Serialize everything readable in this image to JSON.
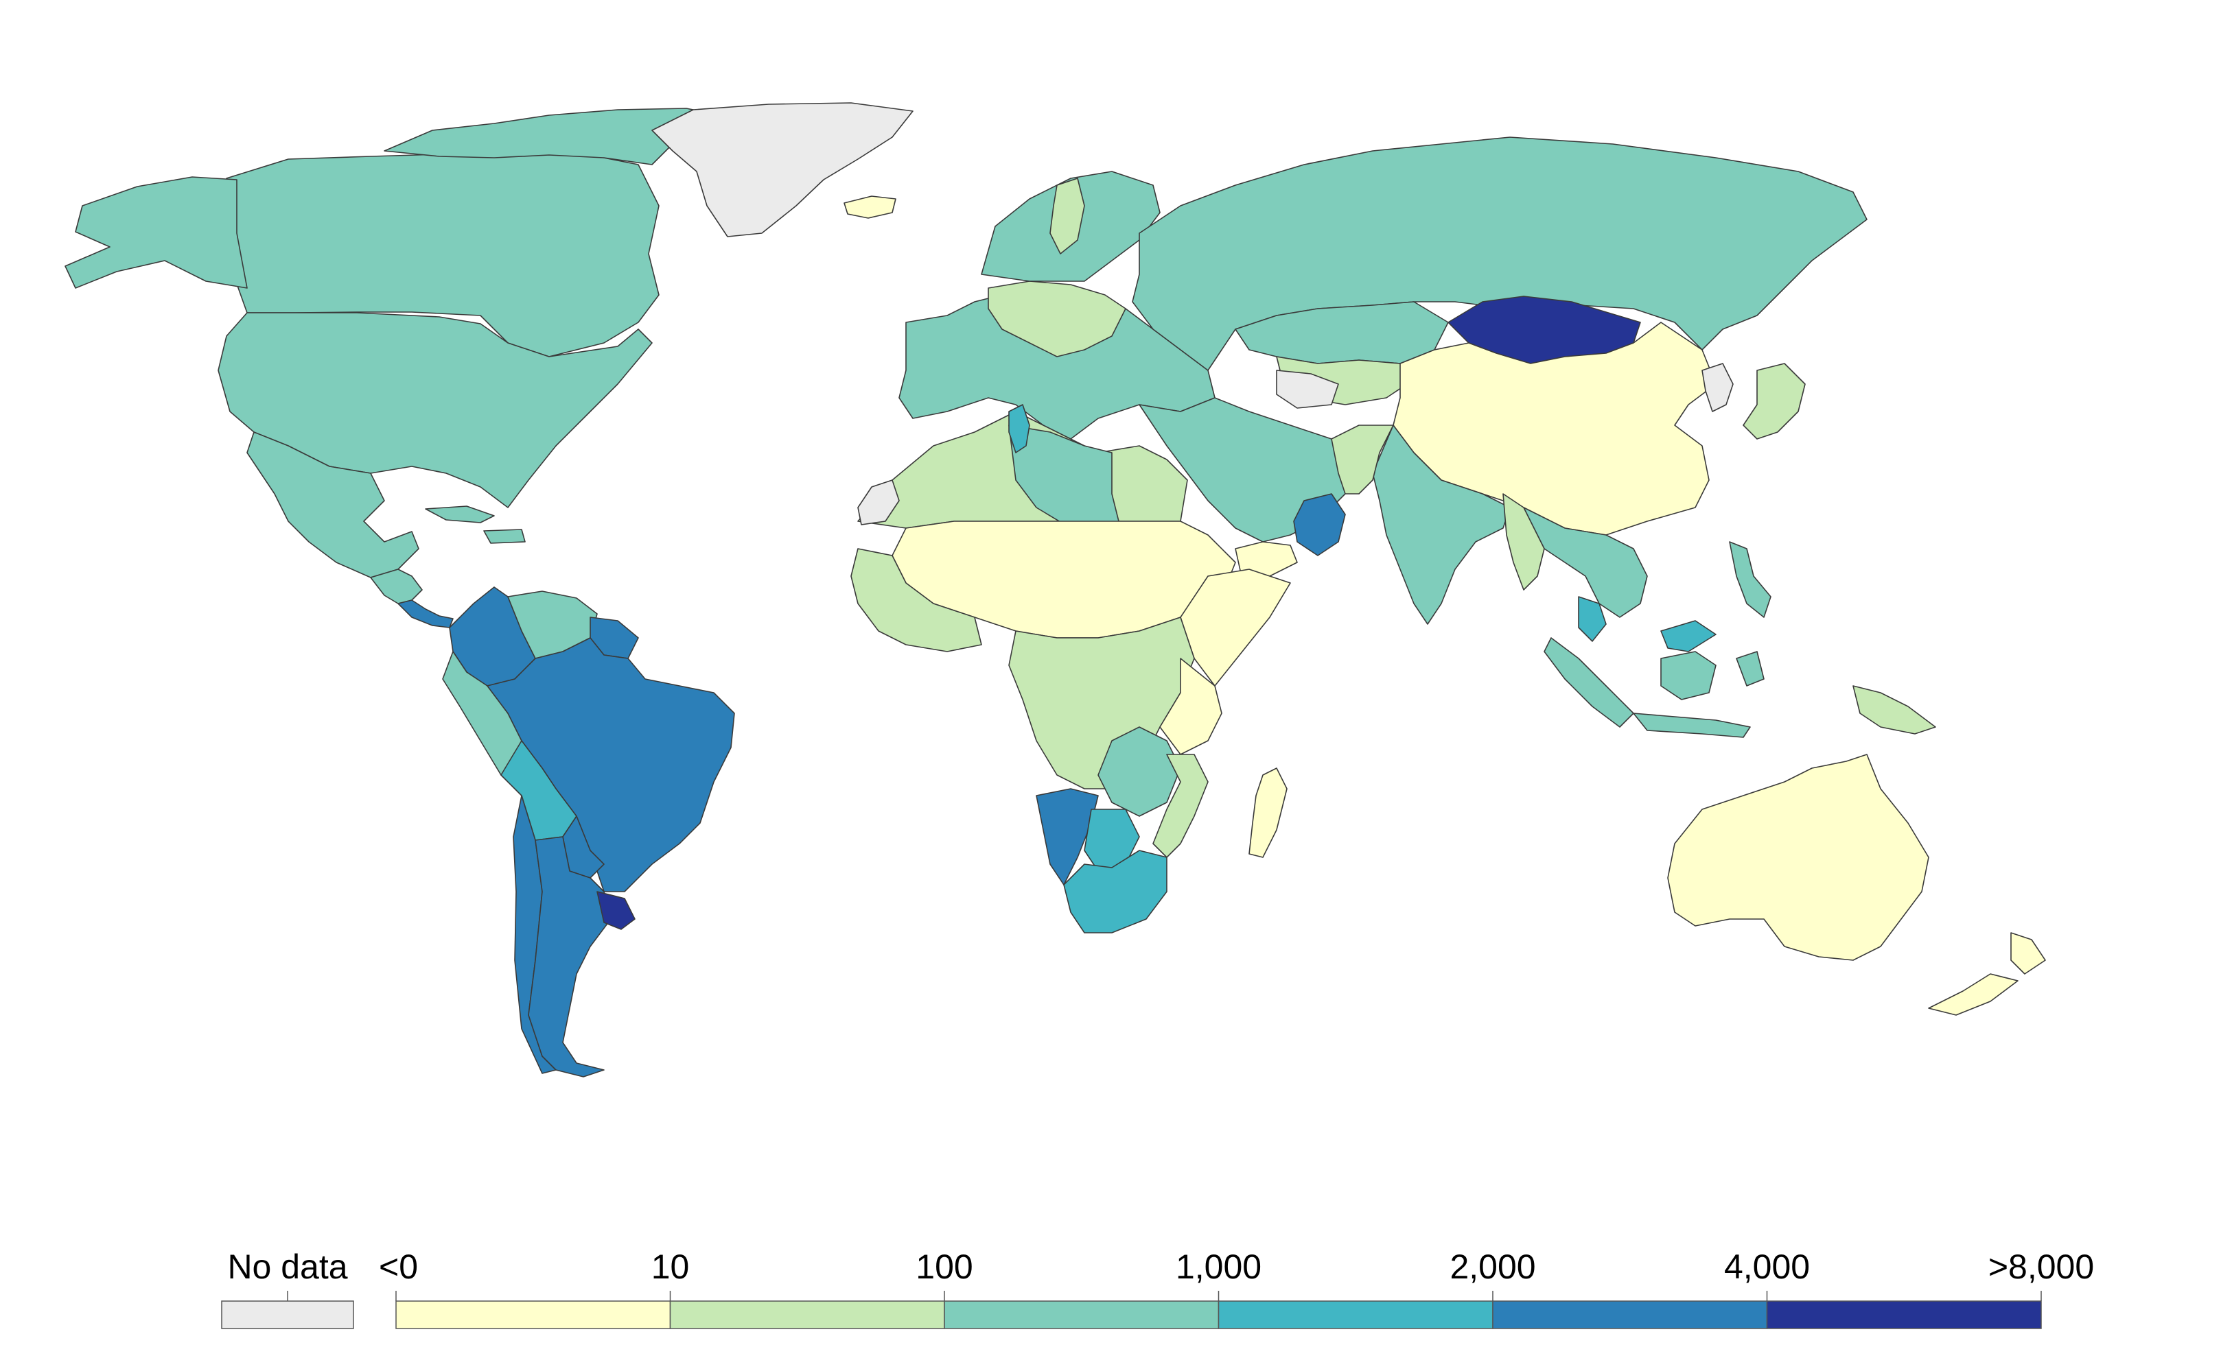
{
  "map": {
    "colors": {
      "no_data": "#ebebeb",
      "bin_lt10": "#ffffcc",
      "bin_10_100": "#c7e9b4",
      "bin_100_1000": "#7fcdbb",
      "bin_1000_2000": "#41b6c4",
      "bin_2000_4000": "#2c7fb8",
      "bin_4000_8000": "#253494",
      "ocean": "#ffffff",
      "border": "#3a3a3a"
    },
    "regions": [
      {
        "name": "canada",
        "fill": "bin_100_1000"
      },
      {
        "name": "alaska",
        "fill": "bin_100_1000"
      },
      {
        "name": "arctic-islands",
        "fill": "bin_100_1000"
      },
      {
        "name": "greenland",
        "fill": "no_data"
      },
      {
        "name": "iceland",
        "fill": "bin_lt10"
      },
      {
        "name": "united-states",
        "fill": "bin_100_1000"
      },
      {
        "name": "mexico",
        "fill": "bin_100_1000"
      },
      {
        "name": "central-america",
        "fill": "bin_100_1000"
      },
      {
        "name": "costa-rica-panama",
        "fill": "bin_2000_4000"
      },
      {
        "name": "caribbean",
        "fill": "bin_100_1000"
      },
      {
        "name": "colombia",
        "fill": "bin_2000_4000"
      },
      {
        "name": "venezuela",
        "fill": "bin_100_1000"
      },
      {
        "name": "guyana-suriname",
        "fill": "bin_2000_4000"
      },
      {
        "name": "ecuador-peru",
        "fill": "bin_100_1000"
      },
      {
        "name": "brazil",
        "fill": "bin_2000_4000"
      },
      {
        "name": "bolivia",
        "fill": "bin_1000_2000"
      },
      {
        "name": "paraguay",
        "fill": "bin_2000_4000"
      },
      {
        "name": "chile",
        "fill": "bin_2000_4000"
      },
      {
        "name": "argentina",
        "fill": "bin_2000_4000"
      },
      {
        "name": "uruguay",
        "fill": "bin_4000_8000"
      },
      {
        "name": "europe",
        "fill": "bin_100_1000"
      },
      {
        "name": "central-europe",
        "fill": "bin_10_100"
      },
      {
        "name": "scandinavia",
        "fill": "bin_100_1000"
      },
      {
        "name": "sweden",
        "fill": "bin_10_100"
      },
      {
        "name": "russia",
        "fill": "bin_100_1000"
      },
      {
        "name": "kazakhstan",
        "fill": "bin_100_1000"
      },
      {
        "name": "central-asia",
        "fill": "bin_10_100"
      },
      {
        "name": "turkmenistan",
        "fill": "no_data"
      },
      {
        "name": "mongolia",
        "fill": "bin_4000_8000"
      },
      {
        "name": "china",
        "fill": "bin_lt10"
      },
      {
        "name": "korea",
        "fill": "no_data"
      },
      {
        "name": "japan",
        "fill": "bin_10_100"
      },
      {
        "name": "middle-east",
        "fill": "bin_100_1000"
      },
      {
        "name": "oman",
        "fill": "bin_2000_4000"
      },
      {
        "name": "yemen",
        "fill": "bin_lt10"
      },
      {
        "name": "south-asia",
        "fill": "bin_100_1000"
      },
      {
        "name": "pakistan",
        "fill": "bin_10_100"
      },
      {
        "name": "southeast-asia",
        "fill": "bin_100_1000"
      },
      {
        "name": "myanmar",
        "fill": "bin_10_100"
      },
      {
        "name": "malaysia",
        "fill": "bin_1000_2000"
      },
      {
        "name": "indonesia",
        "fill": "bin_100_1000"
      },
      {
        "name": "papua-new-guinea",
        "fill": "bin_10_100"
      },
      {
        "name": "philippines",
        "fill": "bin_100_1000"
      },
      {
        "name": "australia",
        "fill": "bin_lt10"
      },
      {
        "name": "new-zealand",
        "fill": "bin_lt10"
      },
      {
        "name": "north-africa",
        "fill": "bin_10_100"
      },
      {
        "name": "libya",
        "fill": "bin_100_1000"
      },
      {
        "name": "tunisia",
        "fill": "bin_1000_2000"
      },
      {
        "name": "western-sahara",
        "fill": "no_data"
      },
      {
        "name": "sahel",
        "fill": "bin_lt10"
      },
      {
        "name": "west-africa",
        "fill": "bin_10_100"
      },
      {
        "name": "horn-of-africa",
        "fill": "bin_lt10"
      },
      {
        "name": "central-africa",
        "fill": "bin_10_100"
      },
      {
        "name": "east-africa",
        "fill": "bin_lt10"
      },
      {
        "name": "zambia-zimbabwe",
        "fill": "bin_100_1000"
      },
      {
        "name": "namibia",
        "fill": "bin_2000_4000"
      },
      {
        "name": "botswana",
        "fill": "bin_1000_2000"
      },
      {
        "name": "south-africa",
        "fill": "bin_1000_2000"
      },
      {
        "name": "mozambique",
        "fill": "bin_10_100"
      },
      {
        "name": "madagascar",
        "fill": "bin_lt10"
      }
    ]
  },
  "legend": {
    "no_data_label": "No data",
    "bins": [
      {
        "fill": "bin_lt10"
      },
      {
        "fill": "bin_10_100"
      },
      {
        "fill": "bin_100_1000"
      },
      {
        "fill": "bin_1000_2000"
      },
      {
        "fill": "bin_2000_4000"
      },
      {
        "fill": "bin_4000_8000"
      }
    ],
    "tick_labels": [
      "<0",
      "10",
      "100",
      "1,000",
      "2,000",
      "4,000",
      ">8,000"
    ]
  }
}
